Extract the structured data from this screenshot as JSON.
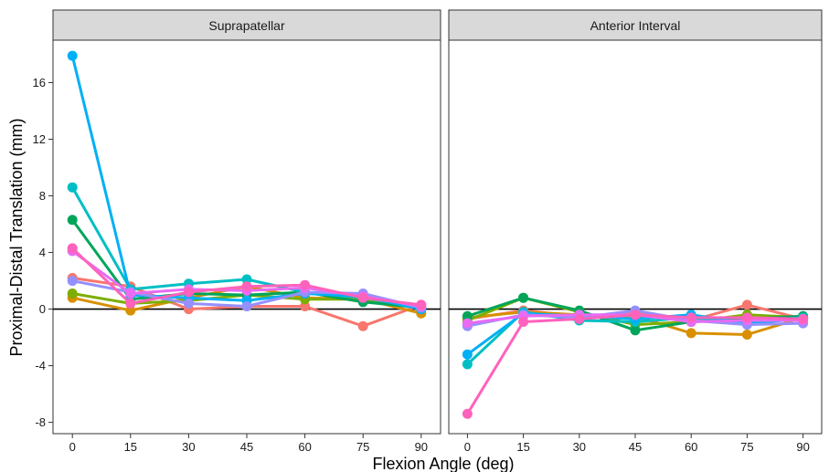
{
  "chart_data": {
    "type": "line",
    "facets": [
      "Suprapatellar",
      "Anterior Interval"
    ],
    "xlabel": "Flexion Angle (deg)",
    "ylabel": "Proximal-Distal Translation (mm)",
    "x": [
      0,
      15,
      30,
      45,
      60,
      75,
      90
    ],
    "x_ticks": [
      "0",
      "15",
      "30",
      "45",
      "60",
      "75",
      "90"
    ],
    "y_ticks": [
      "-8",
      "-4",
      "0",
      "4",
      "8",
      "12",
      "16"
    ],
    "xlim": [
      -5,
      95
    ],
    "ylim": [
      -8.8,
      19
    ],
    "reference_line_y": 0,
    "grid": false,
    "legend": "none",
    "series": [
      {
        "color": "#F8766D",
        "facet": "Suprapatellar",
        "values": [
          2.2,
          1.6,
          0.0,
          0.2,
          0.2,
          -1.2,
          0.3
        ]
      },
      {
        "color": "#D89000",
        "facet": "Suprapatellar",
        "values": [
          0.8,
          -0.1,
          0.8,
          1.6,
          0.8,
          0.7,
          -0.3
        ]
      },
      {
        "color": "#7CAE00",
        "facet": "Suprapatellar",
        "values": [
          1.1,
          0.4,
          0.6,
          1.0,
          0.7,
          0.7,
          0.1
        ]
      },
      {
        "color": "#00A55A",
        "facet": "Suprapatellar",
        "values": [
          6.3,
          0.7,
          1.1,
          1.0,
          1.2,
          0.5,
          0.1
        ]
      },
      {
        "color": "#00BFC4",
        "facet": "Suprapatellar",
        "values": [
          8.6,
          1.4,
          1.8,
          2.1,
          1.2,
          0.8,
          0.1
        ]
      },
      {
        "color": "#00B0F6",
        "facet": "Suprapatellar",
        "values": [
          17.9,
          1.0,
          0.8,
          0.6,
          1.1,
          0.9,
          0.0
        ]
      },
      {
        "color": "#9590FF",
        "facet": "Suprapatellar",
        "values": [
          2.0,
          1.2,
          0.4,
          0.2,
          1.2,
          1.1,
          0.1
        ]
      },
      {
        "color": "#E76BF3",
        "facet": "Suprapatellar",
        "values": [
          4.1,
          1.1,
          1.4,
          1.3,
          1.5,
          0.9,
          0.2
        ]
      },
      {
        "color": "#FF62BC",
        "facet": "Suprapatellar",
        "values": [
          4.3,
          0.4,
          1.2,
          1.6,
          1.7,
          0.8,
          0.3
        ]
      },
      {
        "color": "#F8766D",
        "facet": "Anterior Interval",
        "values": [
          -0.7,
          -0.1,
          -0.5,
          -0.3,
          -0.8,
          0.3,
          -0.7
        ]
      },
      {
        "color": "#D89000",
        "facet": "Anterior Interval",
        "values": [
          -0.6,
          -0.2,
          -0.4,
          -0.5,
          -1.7,
          -1.8,
          -0.6
        ]
      },
      {
        "color": "#7CAE00",
        "facet": "Anterior Interval",
        "values": [
          -0.8,
          0.8,
          -0.2,
          -1.1,
          -0.9,
          -0.4,
          -0.6
        ]
      },
      {
        "color": "#00A55A",
        "facet": "Anterior Interval",
        "values": [
          -0.5,
          0.8,
          -0.1,
          -1.5,
          -0.9,
          -0.7,
          -0.5
        ]
      },
      {
        "color": "#00BFC4",
        "facet": "Anterior Interval",
        "values": [
          -3.9,
          -0.2,
          -0.8,
          -0.9,
          -0.6,
          -0.9,
          -0.6
        ]
      },
      {
        "color": "#00B0F6",
        "facet": "Anterior Interval",
        "values": [
          -3.2,
          -0.3,
          -0.5,
          -0.7,
          -0.4,
          -1.0,
          -0.7
        ]
      },
      {
        "color": "#9590FF",
        "facet": "Anterior Interval",
        "values": [
          -1.2,
          -0.4,
          -0.6,
          -0.1,
          -0.8,
          -1.1,
          -1.0
        ]
      },
      {
        "color": "#E76BF3",
        "facet": "Anterior Interval",
        "values": [
          -1.0,
          -0.5,
          -0.4,
          -0.4,
          -0.9,
          -0.8,
          -0.8
        ]
      },
      {
        "color": "#FF62BC",
        "facet": "Anterior Interval",
        "values": [
          -7.4,
          -0.9,
          -0.7,
          -0.4,
          -0.6,
          -0.6,
          -0.7
        ]
      }
    ]
  }
}
